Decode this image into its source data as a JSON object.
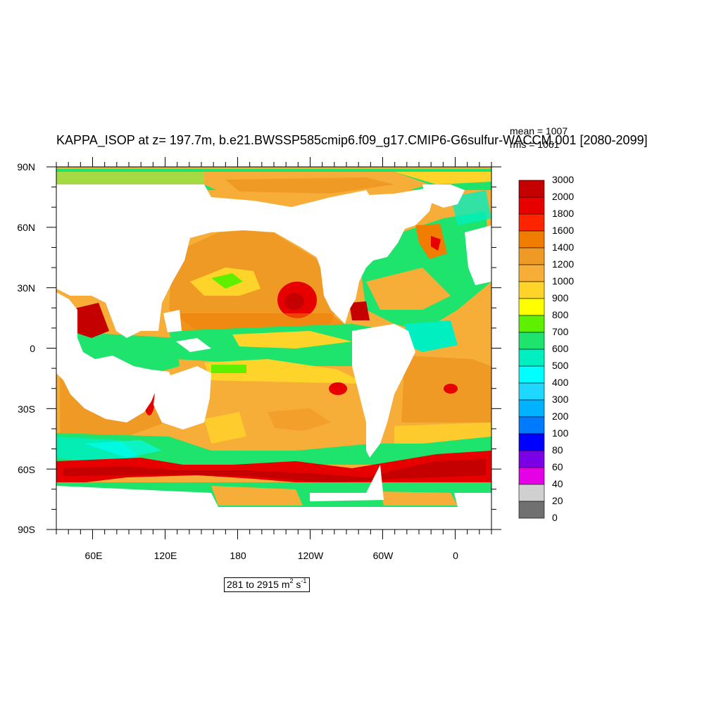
{
  "title": "KAPPA_ISOP at z= 197.7m, b.e21.BWSSP585cmip6.f09_g17.CMIP6-G6sulfur-WACCM.001 [2080-2099]",
  "stats": {
    "mean": "mean = 1007",
    "rms": "rms = 1061"
  },
  "axes": {
    "lat_labels": [
      "90N",
      "60N",
      "30N",
      "0",
      "30S",
      "60S",
      "90S"
    ],
    "lon_labels": [
      "60E",
      "120E",
      "180",
      "120W",
      "60W",
      "0"
    ]
  },
  "colorbar": {
    "levels": [
      "3000",
      "2000",
      "1800",
      "1600",
      "1400",
      "1200",
      "1000",
      "900",
      "800",
      "700",
      "600",
      "500",
      "400",
      "300",
      "200",
      "100",
      "80",
      "60",
      "40",
      "20",
      "0"
    ],
    "colors": [
      "#c40000",
      "#e60000",
      "#ff2400",
      "#f07c00",
      "#f09a26",
      "#f7ae38",
      "#ffd42a",
      "#ffff00",
      "#5ef000",
      "#1ee36c",
      "#00efc0",
      "#00ffff",
      "#1ed8ff",
      "#00b2ff",
      "#007aff",
      "#0000ff",
      "#7b00e6",
      "#e600e6",
      "#d0d0d0",
      "#707070"
    ]
  },
  "range": {
    "text": "281 to 2915 m",
    "sup1": "2",
    "unit": " s",
    "sup2": "-1"
  }
}
